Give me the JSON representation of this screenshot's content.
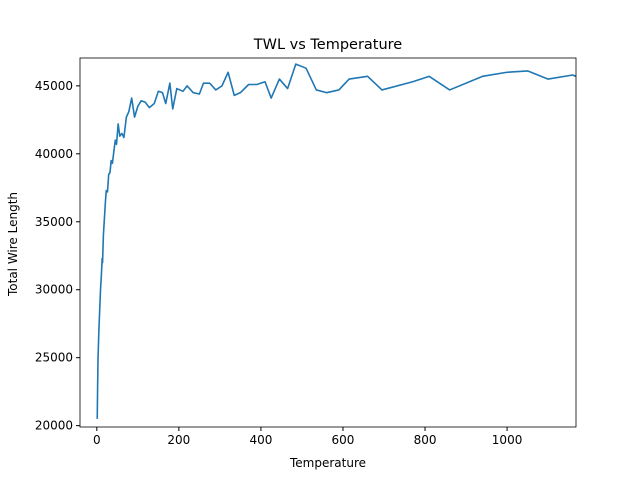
{
  "chart_data": {
    "type": "line",
    "title": "TWL vs Temperature",
    "x_label": "Temperature",
    "y_label": "Total Wire Length",
    "x": [
      1,
      2,
      3,
      5,
      7,
      9,
      11,
      13,
      14,
      16,
      19,
      21,
      23,
      26,
      29,
      32,
      35,
      38,
      42,
      45,
      48,
      52,
      56,
      61,
      66,
      72,
      78,
      85,
      92,
      100,
      108,
      118,
      128,
      140,
      150,
      160,
      168,
      178,
      185,
      195,
      210,
      220,
      235,
      250,
      260,
      275,
      290,
      305,
      320,
      335,
      350,
      370,
      390,
      410,
      425,
      445,
      465,
      485,
      510,
      535,
      560,
      590,
      615,
      660,
      695,
      770,
      810,
      860,
      940,
      1000,
      1050,
      1100,
      1160,
      1168
    ],
    "series": [
      {
        "name": "TWL",
        "color": "#1f77b4",
        "values": [
          20500,
          23000,
          25000,
          27000,
          28500,
          30000,
          31000,
          32300,
          32000,
          34000,
          35500,
          36500,
          37300,
          37200,
          38500,
          38600,
          39500,
          39300,
          40300,
          41000,
          40700,
          42200,
          41300,
          41500,
          41200,
          42700,
          43100,
          44100,
          42700,
          43500,
          43900,
          43800,
          43400,
          43700,
          44600,
          44500,
          43700,
          45200,
          43300,
          44800,
          44600,
          45000,
          44500,
          44400,
          45200,
          45200,
          44700,
          45000,
          46000,
          44300,
          44500,
          45100,
          45100,
          45300,
          44100,
          45500,
          44800,
          46600,
          46300,
          44700,
          44500,
          44700,
          45500,
          45700,
          44700,
          45300,
          45700,
          44700,
          45700,
          46000,
          46100,
          45500,
          45800,
          45700
        ]
      }
    ],
    "xlim": [
      -41,
      1168
    ],
    "ylim": [
      19900,
      47050
    ],
    "xticks": [
      0,
      200,
      400,
      600,
      800,
      1000
    ],
    "yticks": [
      20000,
      25000,
      30000,
      35000,
      40000,
      45000
    ]
  }
}
